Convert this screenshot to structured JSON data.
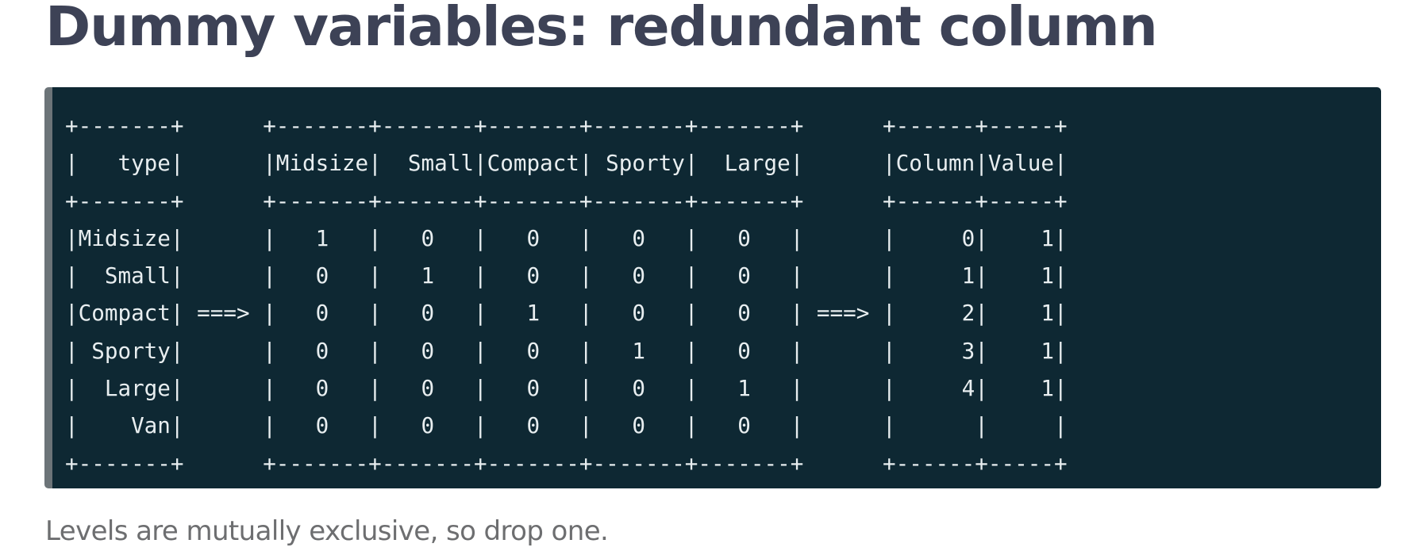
{
  "slide": {
    "title": "Dummy variables: redundant column",
    "code_lines": [
      "+-------+      +-------+-------+-------+-------+-------+      +------+-----+",
      "|   type|      |Midsize|  Small|Compact| Sporty|  Large|      |Column|Value|",
      "+-------+      +-------+-------+-------+-------+-------+      +------+-----+",
      "|Midsize|      |   1   |   0   |   0   |   0   |   0   |      |     0|    1|",
      "|  Small|      |   0   |   1   |   0   |   0   |   0   |      |     1|    1|",
      "|Compact| ===> |   0   |   0   |   1   |   0   |   0   | ===> |     2|    1|",
      "| Sporty|      |   0   |   0   |   0   |   1   |   0   |      |     3|    1|",
      "|  Large|      |   0   |   0   |   0   |   0   |   1   |      |     4|    1|",
      "|    Van|      |   0   |   0   |   0   |   0   |   0   |      |      |     |",
      "+-------+      +-------+-------+-------+-------+-------+      +------+-----+"
    ],
    "caption": "Levels are mutually exclusive, so drop one."
  }
}
